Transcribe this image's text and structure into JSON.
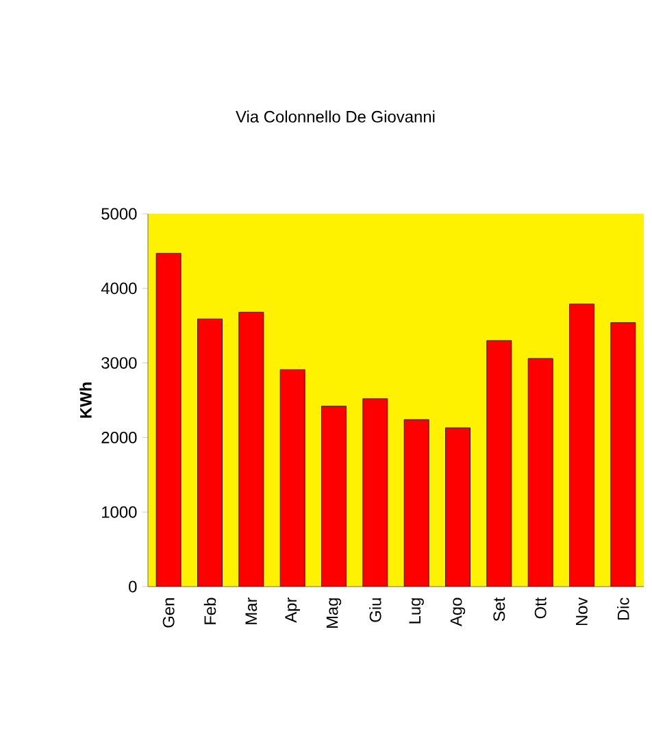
{
  "chart_data": {
    "type": "bar",
    "title": "Via Colonnello De Giovanni",
    "ylabel": "KWh",
    "categories": [
      "Gen",
      "Feb",
      "Mar",
      "Apr",
      "Mag",
      "Giu",
      "Lug",
      "Ago",
      "Set",
      "Ott",
      "Nov",
      "Dic"
    ],
    "values": [
      4470,
      3590,
      3680,
      2910,
      2420,
      2520,
      2240,
      2130,
      3300,
      3060,
      3790,
      3540
    ],
    "color": "#ff0000",
    "ylim": [
      0,
      5000
    ],
    "yticks": [
      0,
      1000,
      2000,
      3000,
      4000,
      5000
    ],
    "grid": false
  }
}
